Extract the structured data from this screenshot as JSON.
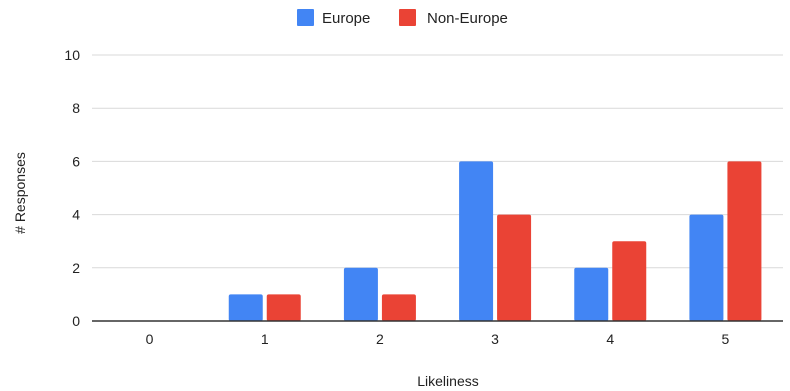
{
  "chart_data": {
    "type": "bar",
    "categories": [
      "0",
      "1",
      "2",
      "3",
      "4",
      "5"
    ],
    "series": [
      {
        "name": "Europe",
        "values": [
          0,
          1,
          2,
          6,
          2,
          4
        ],
        "color": "#4285F4"
      },
      {
        "name": "Non-Europe",
        "values": [
          0,
          1,
          1,
          4,
          3,
          6
        ],
        "color": "#EA4335"
      }
    ],
    "xlabel": "Likeliness",
    "ylabel": "# Responses",
    "ylim": [
      0,
      10
    ],
    "yticks": [
      0,
      2,
      4,
      6,
      8,
      10
    ],
    "grid": true,
    "legend_position": "top-center"
  }
}
